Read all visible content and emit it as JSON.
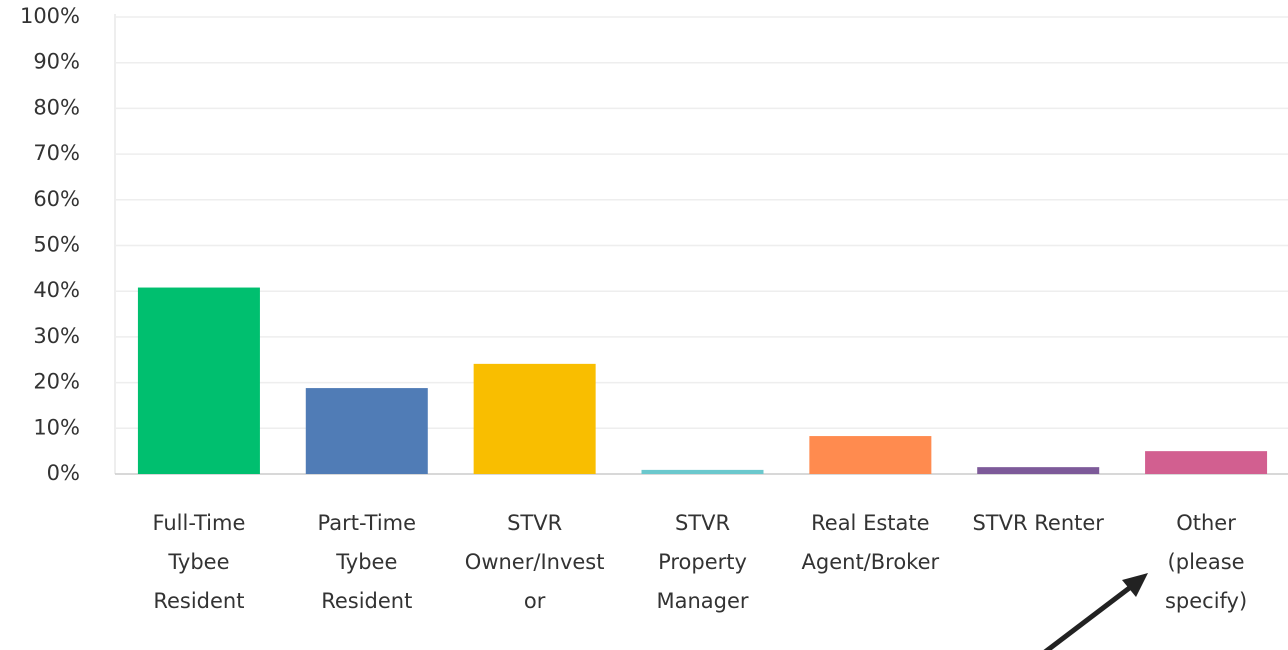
{
  "chart_data": {
    "type": "bar",
    "categories": [
      "Full-Time Tybee Resident",
      "Part-Time Tybee Resident",
      "STVR Owner/Investor",
      "STVR Property Manager",
      "Real Estate Agent/Broker",
      "STVR Renter",
      "Other (please specify)"
    ],
    "values": [
      40.8,
      18.8,
      24.1,
      0.9,
      8.3,
      1.5,
      5.0
    ],
    "colors": [
      "#00bf6f",
      "#507cb6",
      "#f9be00",
      "#6bc8cd",
      "#ff8b4f",
      "#7d5a99",
      "#d25f90"
    ],
    "ylim": [
      0,
      100
    ],
    "yticks": [
      {
        "value": 0,
        "label": "0%"
      },
      {
        "value": 10,
        "label": "10%"
      },
      {
        "value": 20,
        "label": "20%"
      },
      {
        "value": 30,
        "label": "30%"
      },
      {
        "value": 40,
        "label": "40%"
      },
      {
        "value": 50,
        "label": "50%"
      },
      {
        "value": 60,
        "label": "60%"
      },
      {
        "value": 70,
        "label": "70%"
      },
      {
        "value": 80,
        "label": "80%"
      },
      {
        "value": 90,
        "label": "90%"
      },
      {
        "value": 100,
        "label": "100%"
      }
    ],
    "grid": true
  }
}
